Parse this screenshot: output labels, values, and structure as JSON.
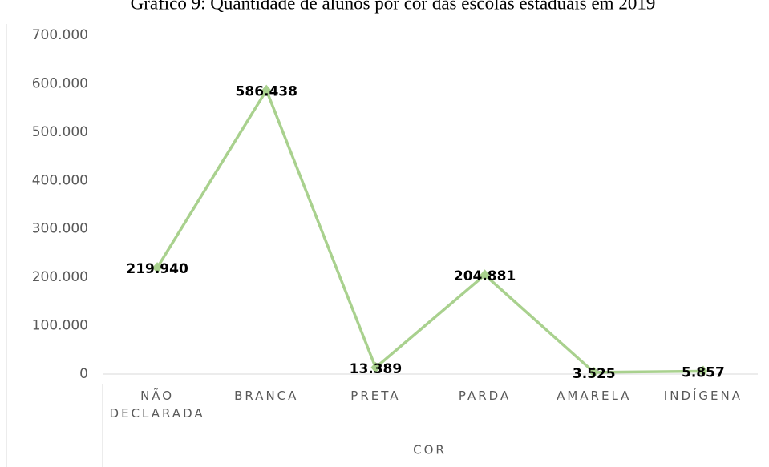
{
  "chart_data": {
    "type": "line",
    "title": "Gráfico 9: Quantidade de alunos por cor das escolas estaduais em 2019",
    "x_label": "COR",
    "categories": [
      "NÃO DECLARADA",
      "BRANCA",
      "PRETA",
      "PARDA",
      "AMARELA",
      "INDÍGENA"
    ],
    "series": [
      {
        "name": "Alunos",
        "color": "#a9d18e",
        "values": [
          219940,
          586438,
          13389,
          204881,
          3525,
          5857
        ],
        "value_labels": [
          "219.940",
          "586.438",
          "13.389",
          "204.881",
          "3.525",
          "5.857"
        ]
      }
    ],
    "ylim": [
      0,
      700000
    ],
    "yticks": [
      0,
      {
        "value": 100000,
        "label": "100.000"
      },
      {
        "value": 200000,
        "label": "200.000"
      },
      {
        "value": 300000,
        "label": "300.000"
      },
      {
        "value": 400000,
        "label": "400.000"
      },
      {
        "value": 500000,
        "label": "500.000"
      },
      {
        "value": 600000,
        "label": "600.000"
      },
      {
        "value": 700000,
        "label": "700.000"
      }
    ]
  }
}
